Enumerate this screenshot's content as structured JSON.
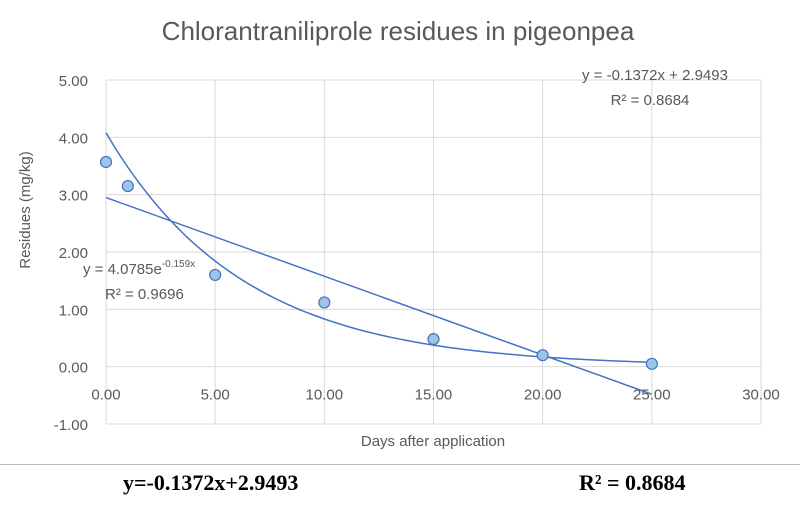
{
  "chart_data": {
    "type": "scatter",
    "title": "Chlorantraniliprole residues in pigeonpea",
    "xlabel": "Days after application",
    "ylabel": "Residues (mg/kg)",
    "xlim": [
      0,
      30
    ],
    "ylim": [
      -1,
      5
    ],
    "xticks": [
      "0.00",
      "5.00",
      "10.00",
      "15.00",
      "20.00",
      "25.00",
      "30.00"
    ],
    "yticks": [
      "-1.00",
      "0.00",
      "1.00",
      "2.00",
      "3.00",
      "4.00",
      "5.00"
    ],
    "grid": true,
    "x": [
      0,
      1,
      5,
      10,
      15,
      20,
      25
    ],
    "y": [
      3.57,
      3.15,
      1.6,
      1.12,
      0.48,
      0.2,
      0.05
    ],
    "trendlines": [
      {
        "type": "linear",
        "slope": -0.1372,
        "intercept": 2.9493,
        "equation": "y = -0.1372x + 2.9493",
        "r2": "R² = 0.8684",
        "xrange": [
          0,
          25
        ]
      },
      {
        "type": "exponential",
        "a": 4.0785,
        "b": -0.159,
        "equation_base": "y = 4.0785e",
        "equation_exp": "-0.159x",
        "r2": "R² = 0.9696",
        "xrange": [
          0,
          25
        ]
      }
    ],
    "colors": {
      "line": "#4472c4",
      "marker_fill": "#9dc3e6",
      "marker_edge": "#4472c4",
      "grid": "#d9d9d9",
      "text": "#595959"
    }
  },
  "footer": {
    "equation": "y=-0.1372x+2.9493",
    "r2": "R² = 0.8684"
  }
}
